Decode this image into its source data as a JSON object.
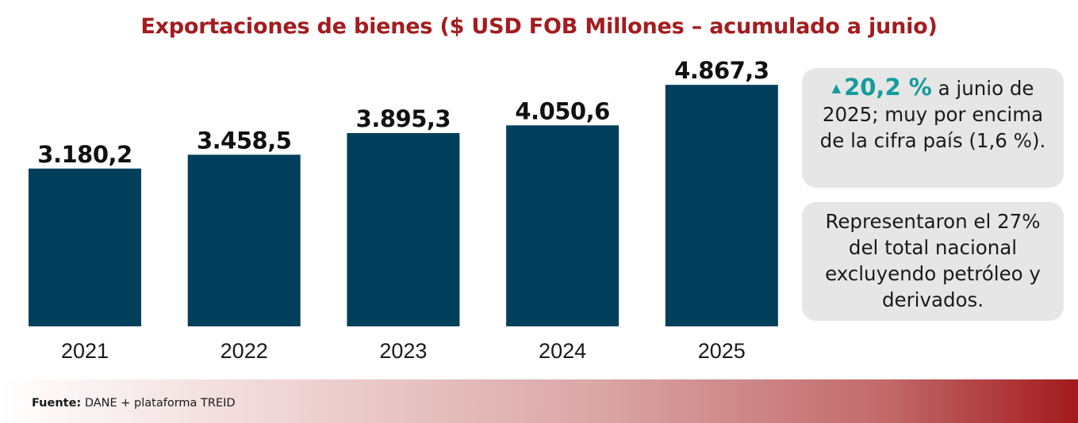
{
  "chart_data": {
    "type": "bar",
    "title": "Exportaciones de bienes ($ USD FOB Millones – acumulado a junio)",
    "categories": [
      "2021",
      "2022",
      "2023",
      "2024",
      "2025"
    ],
    "values": [
      3180.2,
      3458.5,
      3895.3,
      4050.6,
      4867.3
    ],
    "value_labels": [
      "3.180,2",
      "3.458,5",
      "3.895,3",
      "4.050,6",
      "4.867,3"
    ],
    "xlabel": "",
    "ylabel": "",
    "ylim": [
      0,
      5300
    ],
    "grid": false,
    "bar_color": "#003f5c"
  },
  "callouts": {
    "growth": {
      "icon": "triangle-up-icon",
      "highlight": "20,2 %",
      "text": "a junio de 2025; muy por encima de la cifra país (1,6 %)."
    },
    "share": {
      "text": "Representaron el 27% del total nacional excluyendo petróleo y derivados."
    }
  },
  "footer": {
    "source_label": "Fuente:",
    "source_text": "DANE + plataforma TREID"
  },
  "colors": {
    "title": "#a31c1f",
    "bar": "#003f5c",
    "highlight": "#139c9c",
    "footer_accent": "#a3191d"
  }
}
